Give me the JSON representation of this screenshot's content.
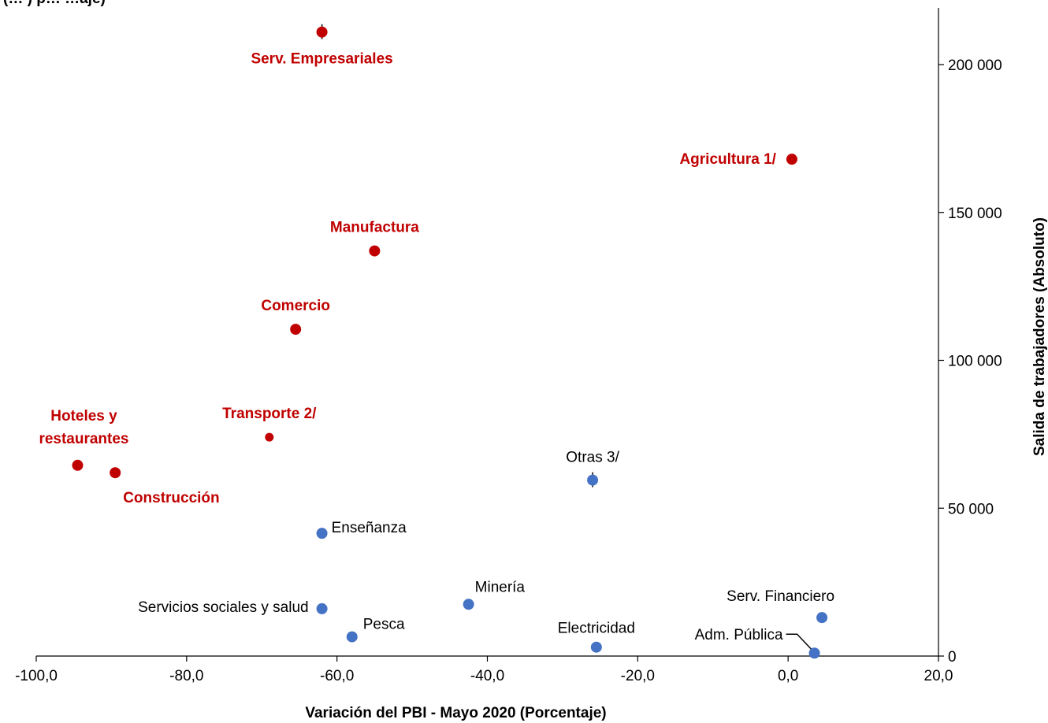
{
  "chart_data": {
    "type": "scatter",
    "title_fragment": "(…                  ) p…          …aje)",
    "xlabel": "Variación del PBI - Mayo 2020 (Porcentaje)",
    "ylabel": "Salida de trabajadores (Absoluto)",
    "xlim": [
      -100,
      20
    ],
    "ylim": [
      0,
      220000
    ],
    "x_ticks": [
      -100,
      -80,
      -60,
      -40,
      -20,
      0,
      20
    ],
    "x_tick_labels": [
      "-100,0",
      "-80,0",
      "-60,0",
      "-40,0",
      "-20,0",
      "0,0",
      "20,0"
    ],
    "y_ticks": [
      0,
      50000,
      100000,
      150000,
      200000
    ],
    "y_tick_labels": [
      "0",
      "50 000",
      "100 000",
      "150 000",
      "200 000"
    ],
    "y_axis_position": "right",
    "grid": false,
    "colors": {
      "highlight": "#C00000",
      "normal": "#4472C4",
      "normal_label": "#000000"
    },
    "points": [
      {
        "label": "Serv. Empresariales",
        "x": -62.0,
        "y": 211000,
        "group": "highlight",
        "leader": true
      },
      {
        "label": "Agricultura 1/",
        "x": 0.5,
        "y": 168000,
        "group": "highlight",
        "leader": false
      },
      {
        "label": "Manufactura",
        "x": -55.0,
        "y": 137000,
        "group": "highlight",
        "leader": false
      },
      {
        "label": "Comercio",
        "x": -65.5,
        "y": 110500,
        "group": "highlight",
        "leader": false
      },
      {
        "label": "Transporte 2/",
        "x": -69.0,
        "y": 74000,
        "group": "highlight",
        "leader": false
      },
      {
        "label": "Hoteles y\nrestaurantes",
        "x": -94.5,
        "y": 64500,
        "group": "highlight",
        "leader": false
      },
      {
        "label": "Construcción",
        "x": -89.5,
        "y": 62000,
        "group": "highlight",
        "leader": false
      },
      {
        "label": "Otras 3/",
        "x": -26.0,
        "y": 59500,
        "group": "normal",
        "leader": true
      },
      {
        "label": "Enseñanza",
        "x": -62.0,
        "y": 41500,
        "group": "normal",
        "leader": false
      },
      {
        "label": "Minería",
        "x": -42.5,
        "y": 17500,
        "group": "normal",
        "leader": false
      },
      {
        "label": "Servicios sociales y salud",
        "x": -62.0,
        "y": 16000,
        "group": "normal",
        "leader": false
      },
      {
        "label": "Pesca",
        "x": -58.0,
        "y": 6500,
        "group": "normal",
        "leader": false
      },
      {
        "label": "Electricidad",
        "x": -25.5,
        "y": 3000,
        "group": "normal",
        "leader": false
      },
      {
        "label": "Serv. Financiero",
        "x": 4.5,
        "y": 13000,
        "group": "normal",
        "leader": false
      },
      {
        "label": "Adm. Pública",
        "x": 3.5,
        "y": 1000,
        "group": "normal",
        "leader": true
      }
    ]
  }
}
